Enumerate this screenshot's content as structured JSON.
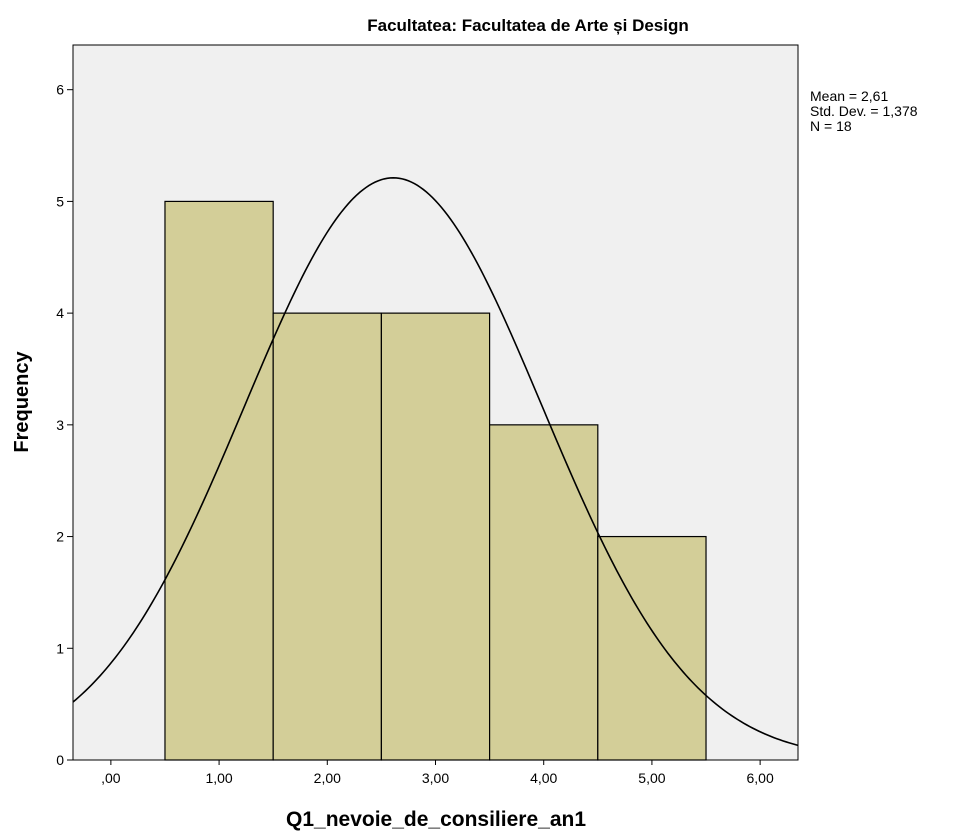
{
  "chart_data": {
    "type": "bar",
    "title": "Facultatea: Facultatea de Arte și Design",
    "xlabel": "Q1_nevoie_de_consiliere_an1",
    "ylabel": "Frequency",
    "x_ticks": [
      0,
      1,
      2,
      3,
      4,
      5,
      6
    ],
    "x_tick_labels": [
      ",00",
      "1,00",
      "2,00",
      "3,00",
      "4,00",
      "5,00",
      "6,00"
    ],
    "y_ticks": [
      0,
      1,
      2,
      3,
      4,
      5,
      6
    ],
    "y_tick_labels": [
      "0",
      "1",
      "2",
      "3",
      "4",
      "5",
      "6"
    ],
    "xlim": [
      -0.35,
      6.35
    ],
    "ylim": [
      0,
      6.4
    ],
    "bins": [
      {
        "from": 0.5,
        "to": 1.5,
        "count": 5
      },
      {
        "from": 1.5,
        "to": 2.5,
        "count": 4
      },
      {
        "from": 2.5,
        "to": 3.5,
        "count": 4
      },
      {
        "from": 3.5,
        "to": 4.5,
        "count": 3
      },
      {
        "from": 4.5,
        "to": 5.5,
        "count": 2
      }
    ],
    "normal_curve": {
      "mean": 2.61,
      "std": 1.378,
      "n": 18,
      "bin_width": 1
    },
    "stats": [
      "Mean = 2,61",
      "Std. Dev. = 1,378",
      "N = 18"
    ],
    "colors": {
      "bar_fill": "#d3ce98",
      "plot_bg": "#f0f0f0",
      "line": "#000000"
    },
    "grid": false,
    "legend": "none"
  }
}
